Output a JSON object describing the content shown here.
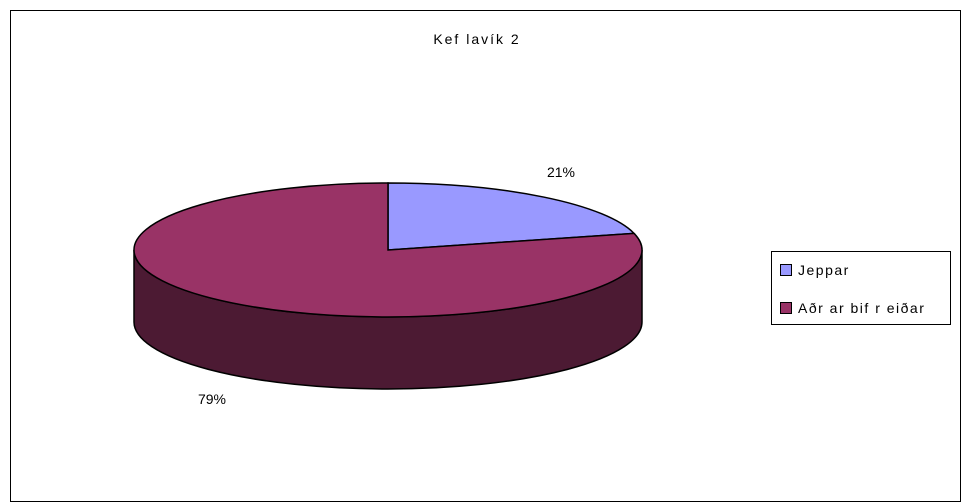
{
  "chart_data": {
    "type": "pie",
    "title": "Kef lavík 2",
    "three_d": true,
    "legend_position": "right",
    "categories": [
      "Jeppar",
      "Aðr ar bif r eiðar"
    ],
    "values": [
      21,
      79
    ],
    "labels": [
      "21%",
      "79%"
    ],
    "colors": [
      "#9999FF",
      "#993366"
    ],
    "side_color": "#4C1A33"
  }
}
